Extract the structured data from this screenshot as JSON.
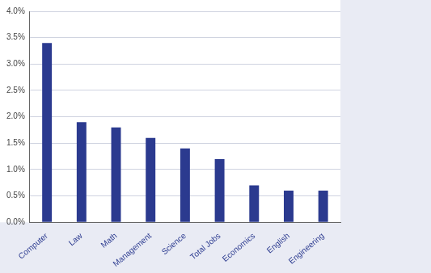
{
  "chart_data": {
    "type": "bar",
    "categories": [
      "Computer",
      "Law",
      "Math",
      "Management",
      "Science",
      "Total Jobs",
      "Economics",
      "English",
      "Engineering"
    ],
    "values": [
      3.4,
      1.9,
      1.8,
      1.6,
      1.4,
      1.2,
      0.7,
      0.6,
      0.6
    ],
    "color": "#2b3a8f",
    "ylim": [
      0,
      4
    ],
    "yticks": [
      {
        "value": 0,
        "label": "0.0%"
      },
      {
        "value": 0.5,
        "label": "0.5%"
      },
      {
        "value": 1,
        "label": "1.0%"
      },
      {
        "value": 1.5,
        "label": "1.5%"
      },
      {
        "value": 2,
        "label": "2.0%"
      },
      {
        "value": 2.5,
        "label": "2.5%"
      },
      {
        "value": 3,
        "label": "3.0%"
      },
      {
        "value": 3.5,
        "label": "3.5%"
      },
      {
        "value": 4,
        "label": "4.0%"
      }
    ],
    "grid": true
  }
}
